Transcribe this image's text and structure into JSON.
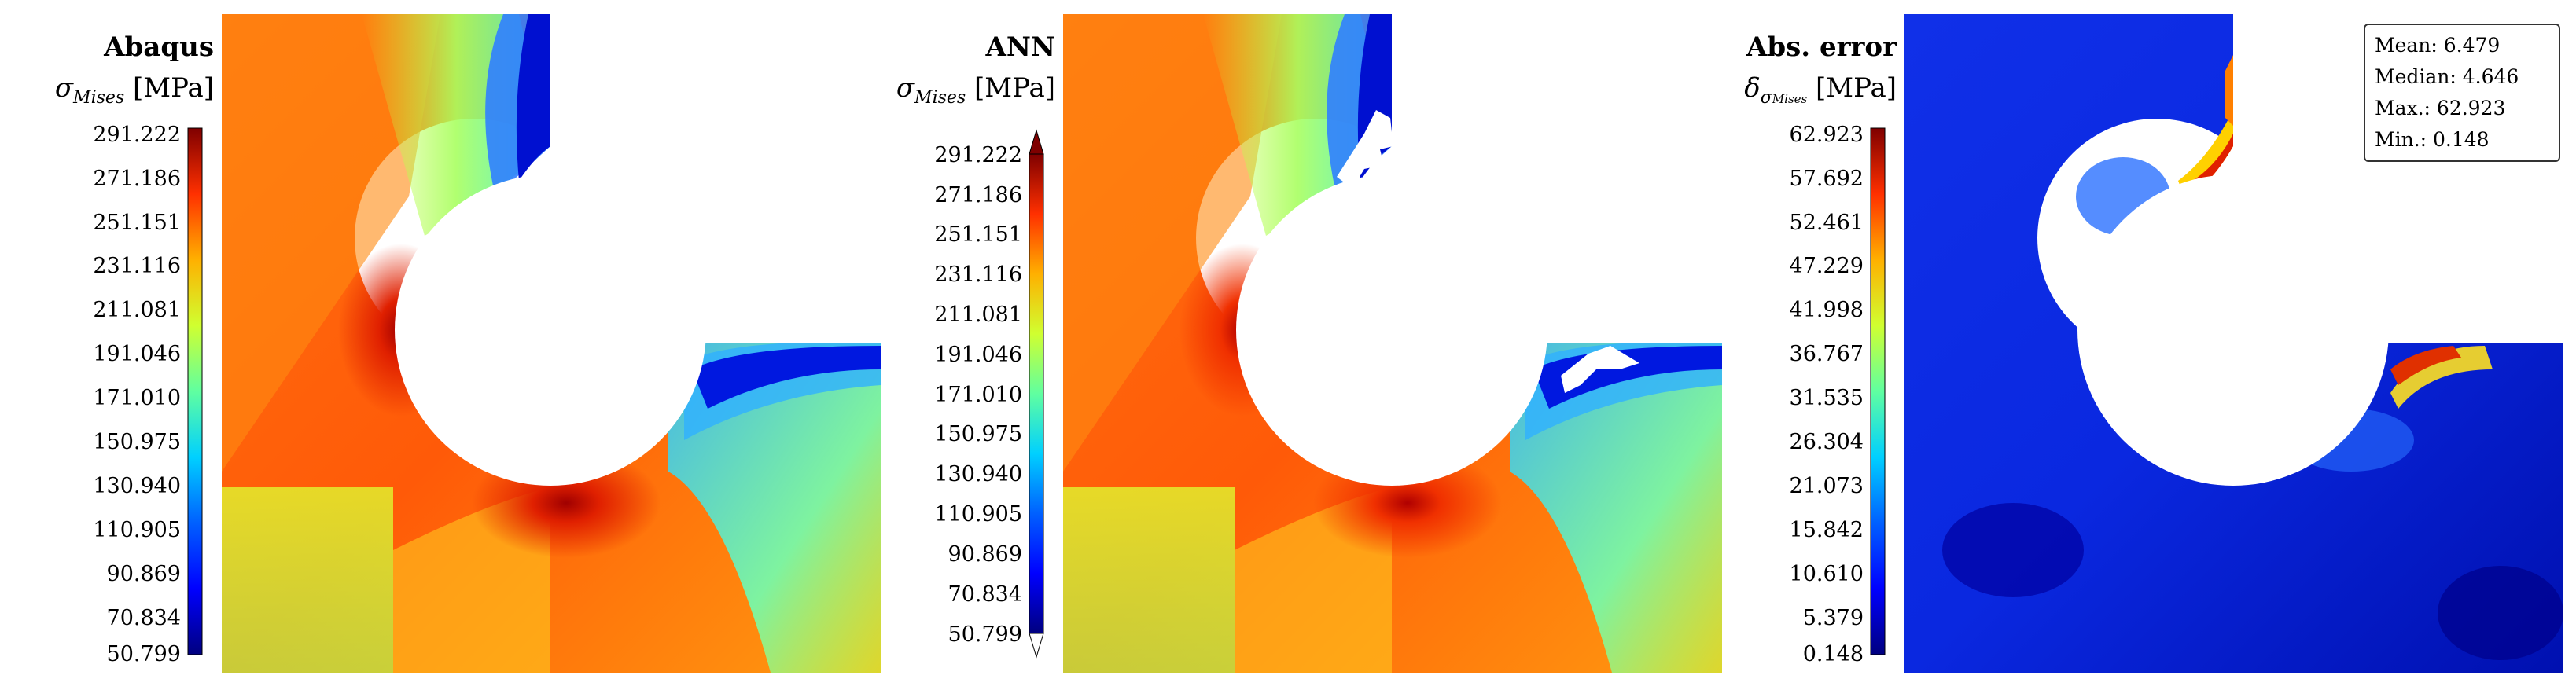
{
  "panels": [
    {
      "title": "Abaqus",
      "quantity_symbol": "σ",
      "quantity_sub": "Mises",
      "quantity_unit": "[MPa]",
      "colorbar_ticks": [
        "291.222",
        "271.186",
        "251.151",
        "231.116",
        "211.081",
        "191.046",
        "171.010",
        "150.975",
        "130.940",
        "110.905",
        "90.869",
        "70.834",
        "50.799"
      ]
    },
    {
      "title": "ANN",
      "quantity_symbol": "σ",
      "quantity_sub": "Mises",
      "quantity_unit": "[MPa]",
      "colorbar_ticks": [
        "291.222",
        "271.186",
        "251.151",
        "231.116",
        "211.081",
        "191.046",
        "171.010",
        "150.975",
        "130.940",
        "110.905",
        "90.869",
        "70.834",
        "50.799"
      ]
    },
    {
      "title": "Abs. error",
      "quantity_symbol": "δ",
      "quantity_sub": "σ",
      "quantity_sub2": "Mises",
      "quantity_unit": "[MPa]",
      "colorbar_ticks": [
        "62.923",
        "57.692",
        "52.461",
        "47.229",
        "41.998",
        "36.767",
        "31.535",
        "26.304",
        "21.073",
        "15.842",
        "10.610",
        "5.379",
        "0.148"
      ]
    }
  ],
  "stats": {
    "mean": "Mean: 6.479",
    "median": "Median: 4.646",
    "max": "Max.: 62.923",
    "min": "Min.: 0.148"
  },
  "colormap": {
    "name": "jet",
    "stops": [
      "#00007f",
      "#0000ff",
      "#0080ff",
      "#00ffff",
      "#80ff80",
      "#ffff00",
      "#ff8000",
      "#ff0000",
      "#7f0000"
    ]
  }
}
